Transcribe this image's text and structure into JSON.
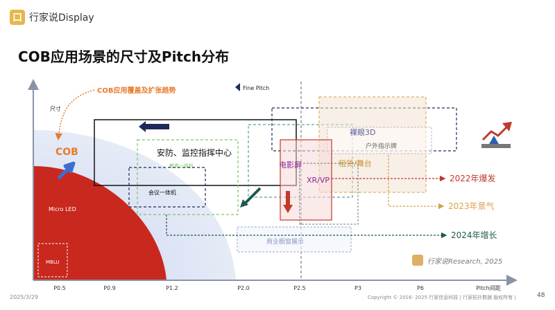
{
  "header": {
    "brand_icon_text": "口",
    "brand_name": "行家说Display",
    "slide_title": "COB应用场景的尺寸及Pitch分布"
  },
  "diagram": {
    "y_axis_label": "尺寸",
    "x_axis_label": "Pitch间距",
    "x_ticks": [
      "P0.5",
      "P0.9",
      "P1.2",
      "P2.0",
      "P2.5",
      "P3",
      "P6"
    ],
    "cob_trend_label": "COB应用覆盖及扩张趋势",
    "fine_pitch_label": "Fine Pitch",
    "cob_label": "COB",
    "micro_led_label": "Micro LED",
    "mblu_label": "MBLU",
    "scenarios": {
      "security": "安防、监控指挥中心",
      "education": "教育一体机",
      "conference": "会议一体机",
      "cinema": "电影屏",
      "xr_vp": "XR/VP",
      "naked_3d": "裸眼3D",
      "outdoor_sign": "户外指示牌",
      "rental_stage": "租赁/舞台",
      "retail_window": "商业橱窗展示"
    },
    "years": {
      "y2022": "2022年爆发",
      "y2023": "2023年景气",
      "y2024": "2024年增长"
    },
    "watermark": "行家说Research, 2025",
    "colors": {
      "cob_red": "#c8281e",
      "blue_area": "#d9e1f4",
      "y2022": "#c0392b",
      "y2023": "#d8a24a",
      "y2024": "#1e5a4e",
      "orange": "#e87a2a",
      "navy": "#1d2a5c"
    }
  },
  "footer": {
    "date": "2025/3/29",
    "copyright": "Copyright © 2016- 2025 行家信息科技 | 行家拓扑数据 版权所有 |",
    "page_number": "48"
  }
}
